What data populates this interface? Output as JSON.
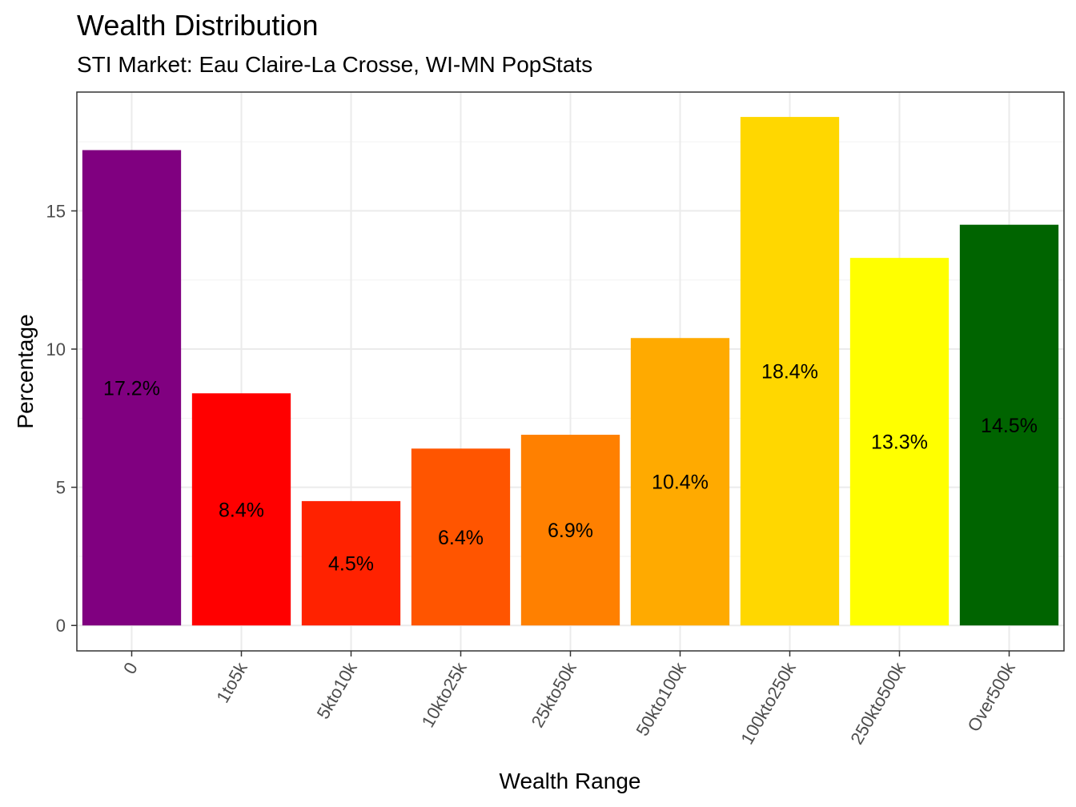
{
  "chart_data": {
    "type": "bar",
    "title": "Wealth Distribution",
    "subtitle": "STI Market: Eau Claire-La Crosse, WI-MN PopStats",
    "xlabel": "Wealth Range",
    "ylabel": "Percentage",
    "categories": [
      "0",
      "1to5k",
      "5kto10k",
      "10kto25k",
      "25kto50k",
      "50kto100k",
      "100kto250k",
      "250kto500k",
      "Over500k"
    ],
    "values": [
      17.2,
      8.4,
      4.5,
      6.4,
      6.9,
      10.4,
      18.4,
      13.3,
      14.5
    ],
    "data_labels": [
      "17.2%",
      "8.4%",
      "4.5%",
      "6.4%",
      "6.9%",
      "10.4%",
      "18.4%",
      "13.3%",
      "14.5%"
    ],
    "colors": [
      "#800080",
      "#ff0000",
      "#ff2200",
      "#ff5500",
      "#ff8000",
      "#ffaa00",
      "#ffd700",
      "#ffff00",
      "#006400"
    ],
    "yticks": [
      0,
      5,
      10,
      15
    ],
    "ytick_labels": [
      "0",
      "5",
      "10",
      "15"
    ],
    "ylim": [
      -0.92,
      19.3
    ],
    "grid": true,
    "legend": "none"
  }
}
